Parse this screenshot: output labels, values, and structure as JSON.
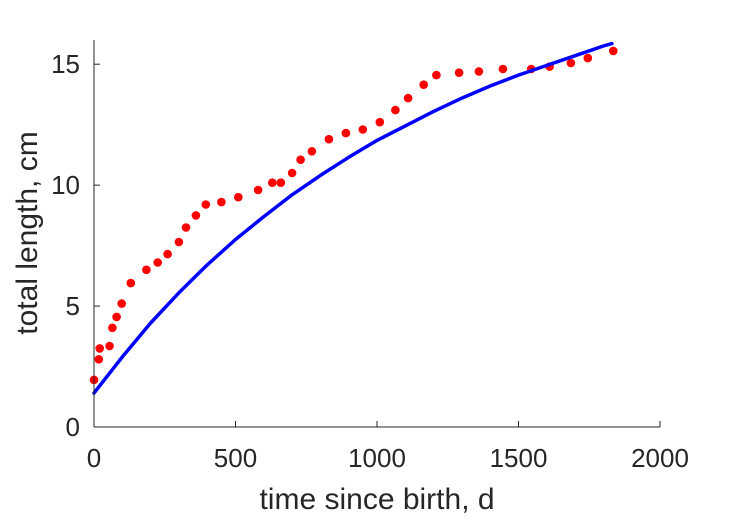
{
  "chart_data": {
    "type": "scatter",
    "title": "",
    "xlabel": "time since birth, d",
    "ylabel": "total length, cm",
    "xlim": [
      0,
      2000
    ],
    "ylim": [
      0,
      16
    ],
    "xticks": [
      0,
      500,
      1000,
      1500,
      2000
    ],
    "yticks": [
      0,
      5,
      10,
      15
    ],
    "xtick_labels": [
      "0",
      "500",
      "1000",
      "1500",
      "2000"
    ],
    "ytick_labels": [
      "0",
      "5",
      "10",
      "15"
    ],
    "grid": false,
    "series": [
      {
        "kind": "points",
        "color": "#ff0000",
        "x": [
          0,
          17,
          20,
          55,
          65,
          80,
          98,
          130,
          185,
          225,
          260,
          300,
          325,
          360,
          395,
          450,
          510,
          580,
          630,
          660,
          700,
          730,
          770,
          830,
          890,
          950,
          1010,
          1065,
          1110,
          1165,
          1210,
          1290,
          1360,
          1445,
          1545,
          1610,
          1685,
          1745,
          1835
        ],
        "y": [
          1.95,
          2.8,
          3.25,
          3.35,
          4.1,
          4.55,
          5.1,
          5.95,
          6.5,
          6.8,
          7.15,
          7.65,
          8.25,
          8.75,
          9.2,
          9.3,
          9.5,
          9.8,
          10.1,
          10.1,
          10.5,
          11.05,
          11.4,
          11.9,
          12.15,
          12.3,
          12.6,
          13.1,
          13.6,
          14.15,
          14.55,
          14.65,
          14.7,
          14.8,
          14.8,
          14.9,
          15.05,
          15.25,
          15.55
        ]
      },
      {
        "kind": "line",
        "color": "#0000ff",
        "x": [
          0,
          100,
          200,
          300,
          400,
          500,
          600,
          700,
          800,
          900,
          1000,
          1100,
          1200,
          1300,
          1400,
          1500,
          1600,
          1700,
          1800,
          1830
        ],
        "y": [
          1.4,
          2.9,
          4.3,
          5.55,
          6.7,
          7.75,
          8.7,
          9.6,
          10.4,
          11.15,
          11.85,
          12.45,
          13.05,
          13.6,
          14.1,
          14.55,
          14.95,
          15.35,
          15.75,
          15.85
        ]
      }
    ]
  }
}
